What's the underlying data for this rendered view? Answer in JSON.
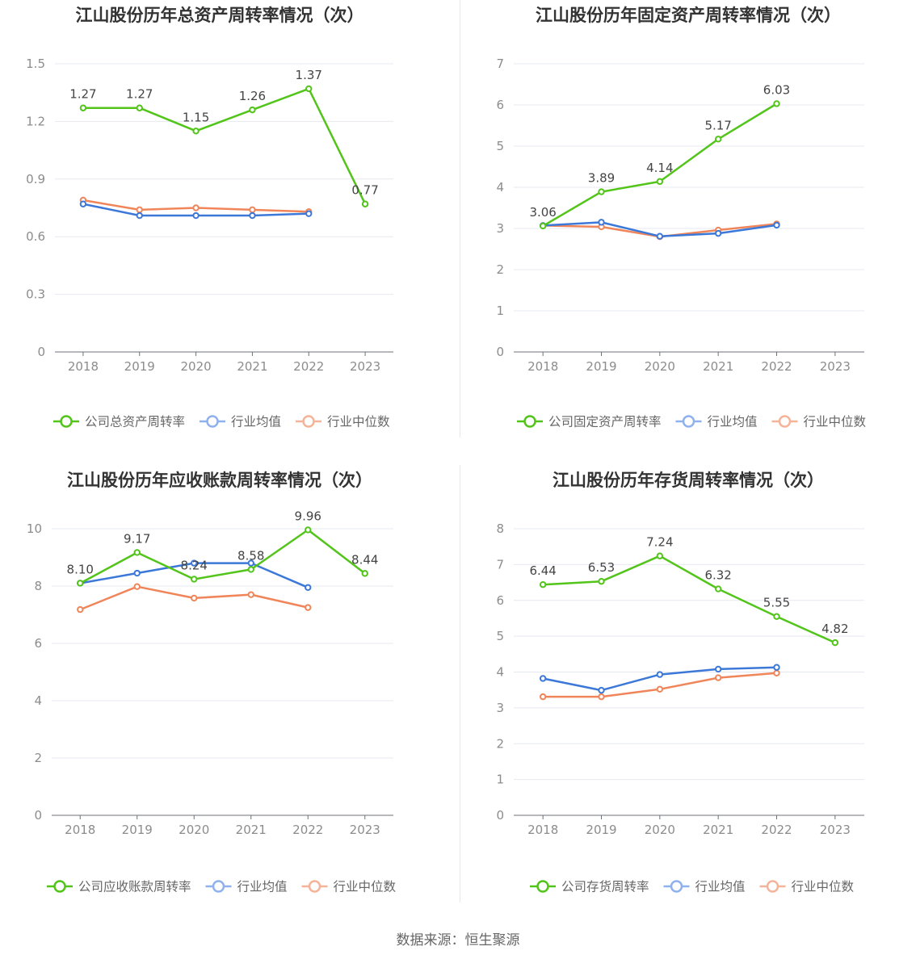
{
  "colors": {
    "company": "#52c41a",
    "avg": "#3c78d8",
    "median": "#f0855a",
    "avg_legend": "#8fb1ee",
    "median_legend": "#f5b39a",
    "grid": "#e6e8f0",
    "axis": "#8c8c8c",
    "text": "#666666",
    "title": "#333333"
  },
  "source": "数据来源：恒生聚源",
  "chart_data": [
    {
      "type": "line",
      "title": "江山股份历年总资产周转率情况（次）",
      "categories": [
        "2018",
        "2019",
        "2020",
        "2021",
        "2022",
        "2023"
      ],
      "ylim": [
        0,
        1.5
      ],
      "yticks": [
        "0",
        "0.3",
        "0.6",
        "0.9",
        "1.2",
        "1.5"
      ],
      "series": [
        {
          "name": "公司总资产周转率",
          "values": [
            1.27,
            1.27,
            1.15,
            1.26,
            1.37,
            0.77
          ],
          "labels": [
            "1.27",
            "1.27",
            "1.15",
            "1.26",
            "1.37",
            "0.77"
          ]
        },
        {
          "name": "行业均值",
          "values": [
            0.77,
            0.71,
            0.71,
            0.71,
            0.72,
            null
          ]
        },
        {
          "name": "行业中位数",
          "values": [
            0.79,
            0.74,
            0.75,
            0.74,
            0.73,
            null
          ]
        }
      ]
    },
    {
      "type": "line",
      "title": "江山股份历年固定资产周转率情况（次）",
      "categories": [
        "2018",
        "2019",
        "2020",
        "2021",
        "2022",
        "2023"
      ],
      "ylim": [
        0,
        7
      ],
      "yticks": [
        "0",
        "1",
        "2",
        "3",
        "4",
        "5",
        "6",
        "7"
      ],
      "series": [
        {
          "name": "公司固定资产周转率",
          "values": [
            3.06,
            3.89,
            4.14,
            5.17,
            6.03,
            null
          ],
          "labels": [
            "3.06",
            "3.89",
            "4.14",
            "5.17",
            "6.03",
            null
          ]
        },
        {
          "name": "行业均值",
          "values": [
            3.07,
            3.15,
            2.81,
            2.88,
            3.08,
            null
          ]
        },
        {
          "name": "行业中位数",
          "values": [
            3.07,
            3.04,
            2.8,
            2.96,
            3.11,
            null
          ]
        }
      ]
    },
    {
      "type": "line",
      "title": "江山股份历年应收账款周转率情况（次）",
      "categories": [
        "2018",
        "2019",
        "2020",
        "2021",
        "2022",
        "2023"
      ],
      "ylim": [
        0,
        10
      ],
      "yticks": [
        "0",
        "2",
        "4",
        "6",
        "8",
        "10"
      ],
      "series": [
        {
          "name": "公司应收账款周转率",
          "values": [
            8.1,
            9.17,
            8.24,
            8.58,
            9.96,
            8.44
          ],
          "labels": [
            "8.10",
            "9.17",
            "8.24",
            "8.58",
            "9.96",
            "8.44"
          ]
        },
        {
          "name": "行业均值",
          "values": [
            8.1,
            8.45,
            8.8,
            8.8,
            7.95,
            null
          ]
        },
        {
          "name": "行业中位数",
          "values": [
            7.18,
            7.98,
            7.58,
            7.7,
            7.25,
            null
          ]
        }
      ]
    },
    {
      "type": "line",
      "title": "江山股份历年存货周转率情况（次）",
      "categories": [
        "2018",
        "2019",
        "2020",
        "2021",
        "2022",
        "2023"
      ],
      "ylim": [
        0,
        8
      ],
      "yticks": [
        "0",
        "1",
        "2",
        "3",
        "4",
        "5",
        "6",
        "7",
        "8"
      ],
      "series": [
        {
          "name": "公司存货周转率",
          "values": [
            6.44,
            6.53,
            7.24,
            6.32,
            5.55,
            4.82
          ],
          "labels": [
            "6.44",
            "6.53",
            "7.24",
            "6.32",
            "5.55",
            "4.82"
          ]
        },
        {
          "name": "行业均值",
          "values": [
            3.82,
            3.49,
            3.93,
            4.08,
            4.13,
            null
          ]
        },
        {
          "name": "行业中位数",
          "values": [
            3.31,
            3.31,
            3.52,
            3.84,
            3.97,
            null
          ]
        }
      ]
    }
  ]
}
